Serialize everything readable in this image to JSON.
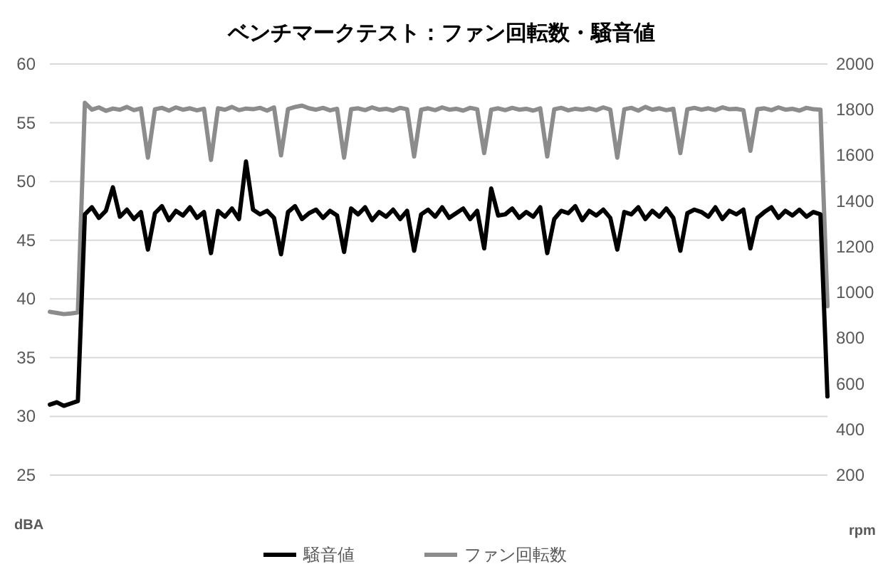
{
  "chart_data": {
    "type": "line",
    "title": "ベンチマークテスト：ファン回転数・騒音値",
    "ylabel": "dBA",
    "y2label": "rpm",
    "categories": [
      null,
      null,
      null,
      null,
      null,
      null,
      null,
      null,
      null,
      null,
      null,
      null,
      null,
      null,
      null,
      null,
      null,
      null,
      null,
      null,
      null,
      null,
      null,
      null,
      null,
      null,
      null,
      null,
      null,
      null,
      null,
      null,
      null,
      null,
      null,
      null,
      null,
      null,
      null,
      null,
      null,
      null,
      null,
      null,
      null,
      null,
      null,
      null,
      null,
      null,
      null,
      null,
      null,
      null,
      null,
      null,
      null,
      null,
      null,
      null,
      null,
      null,
      null,
      null,
      null,
      null,
      null,
      null,
      null,
      null,
      null,
      null,
      null,
      null,
      null,
      null,
      null,
      null,
      null,
      null,
      null,
      null,
      null,
      null,
      null,
      null,
      null,
      null,
      null,
      null,
      null,
      null,
      null,
      null,
      null,
      null,
      null,
      null,
      null,
      null,
      null,
      null,
      null,
      null,
      null,
      null,
      null,
      null,
      null,
      null,
      null,
      null
    ],
    "series": [
      {
        "name": "騒音値",
        "color": "#000000",
        "values": [
          31.0,
          31.2,
          30.9,
          31.1,
          31.3,
          47.2,
          47.8,
          46.9,
          47.5,
          49.5,
          47.0,
          47.6,
          46.8,
          47.4,
          44.2,
          47.3,
          47.9,
          46.7,
          47.5,
          47.1,
          47.8,
          46.9,
          47.4,
          43.9,
          47.5,
          47.0,
          47.7,
          46.8,
          51.7,
          47.6,
          47.2,
          47.5,
          46.9,
          43.8,
          47.4,
          47.9,
          46.8,
          47.3,
          47.6,
          46.9,
          47.5,
          47.1,
          44.0,
          47.7,
          47.2,
          47.8,
          46.7,
          47.4,
          47.0,
          47.6,
          46.8,
          47.5,
          44.1,
          47.2,
          47.6,
          47.0,
          47.8,
          46.9,
          47.3,
          47.7,
          46.8,
          47.5,
          44.3,
          49.4,
          47.1,
          47.2,
          47.7,
          46.9,
          47.4,
          47.0,
          47.8,
          43.9,
          46.8,
          47.5,
          47.3,
          47.9,
          46.7,
          47.5,
          47.1,
          47.6,
          46.9,
          44.2,
          47.4,
          47.2,
          47.8,
          46.8,
          47.5,
          47.0,
          47.7,
          46.9,
          44.1,
          47.3,
          47.6,
          47.4,
          47.0,
          47.8,
          46.8,
          47.5,
          47.2,
          47.6,
          44.3,
          46.9,
          47.4,
          47.8,
          46.9,
          47.5,
          47.1,
          47.6,
          47.0,
          47.4,
          47.2,
          31.7
        ]
      },
      {
        "name": "ファン回転数",
        "color": "#8c8c8c",
        "axis": "y2",
        "values": [
          915,
          910,
          905,
          908,
          912,
          1830,
          1800,
          1810,
          1795,
          1805,
          1800,
          1812,
          1798,
          1806,
          1590,
          1802,
          1808,
          1796,
          1810,
          1800,
          1806,
          1797,
          1804,
          1580,
          1806,
          1800,
          1812,
          1798,
          1805,
          1802,
          1808,
          1796,
          1810,
          1600,
          1803,
          1812,
          1818,
          1806,
          1800,
          1808,
          1797,
          1804,
          1590,
          1802,
          1806,
          1798,
          1810,
          1800,
          1804,
          1796,
          1808,
          1802,
          1595,
          1800,
          1806,
          1798,
          1810,
          1800,
          1804,
          1796,
          1808,
          1802,
          1610,
          1800,
          1806,
          1798,
          1808,
          1800,
          1804,
          1796,
          1806,
          1595,
          1802,
          1808,
          1797,
          1804,
          1800,
          1806,
          1798,
          1810,
          1800,
          1590,
          1802,
          1808,
          1796,
          1812,
          1800,
          1806,
          1798,
          1804,
          1610,
          1802,
          1808,
          1800,
          1806,
          1798,
          1810,
          1802,
          1804,
          1798,
          1620,
          1802,
          1806,
          1798,
          1810,
          1800,
          1804,
          1796,
          1808,
          1802,
          1800,
          940
        ]
      }
    ],
    "ylim": [
      25,
      60
    ],
    "yticks": [
      25,
      30,
      35,
      40,
      45,
      50,
      55,
      60
    ],
    "y2lim": [
      200,
      2000
    ],
    "y2ticks": [
      200,
      400,
      600,
      800,
      1000,
      1200,
      1400,
      1600,
      1800,
      2000
    ],
    "grid": "y",
    "legend": "bottom"
  }
}
